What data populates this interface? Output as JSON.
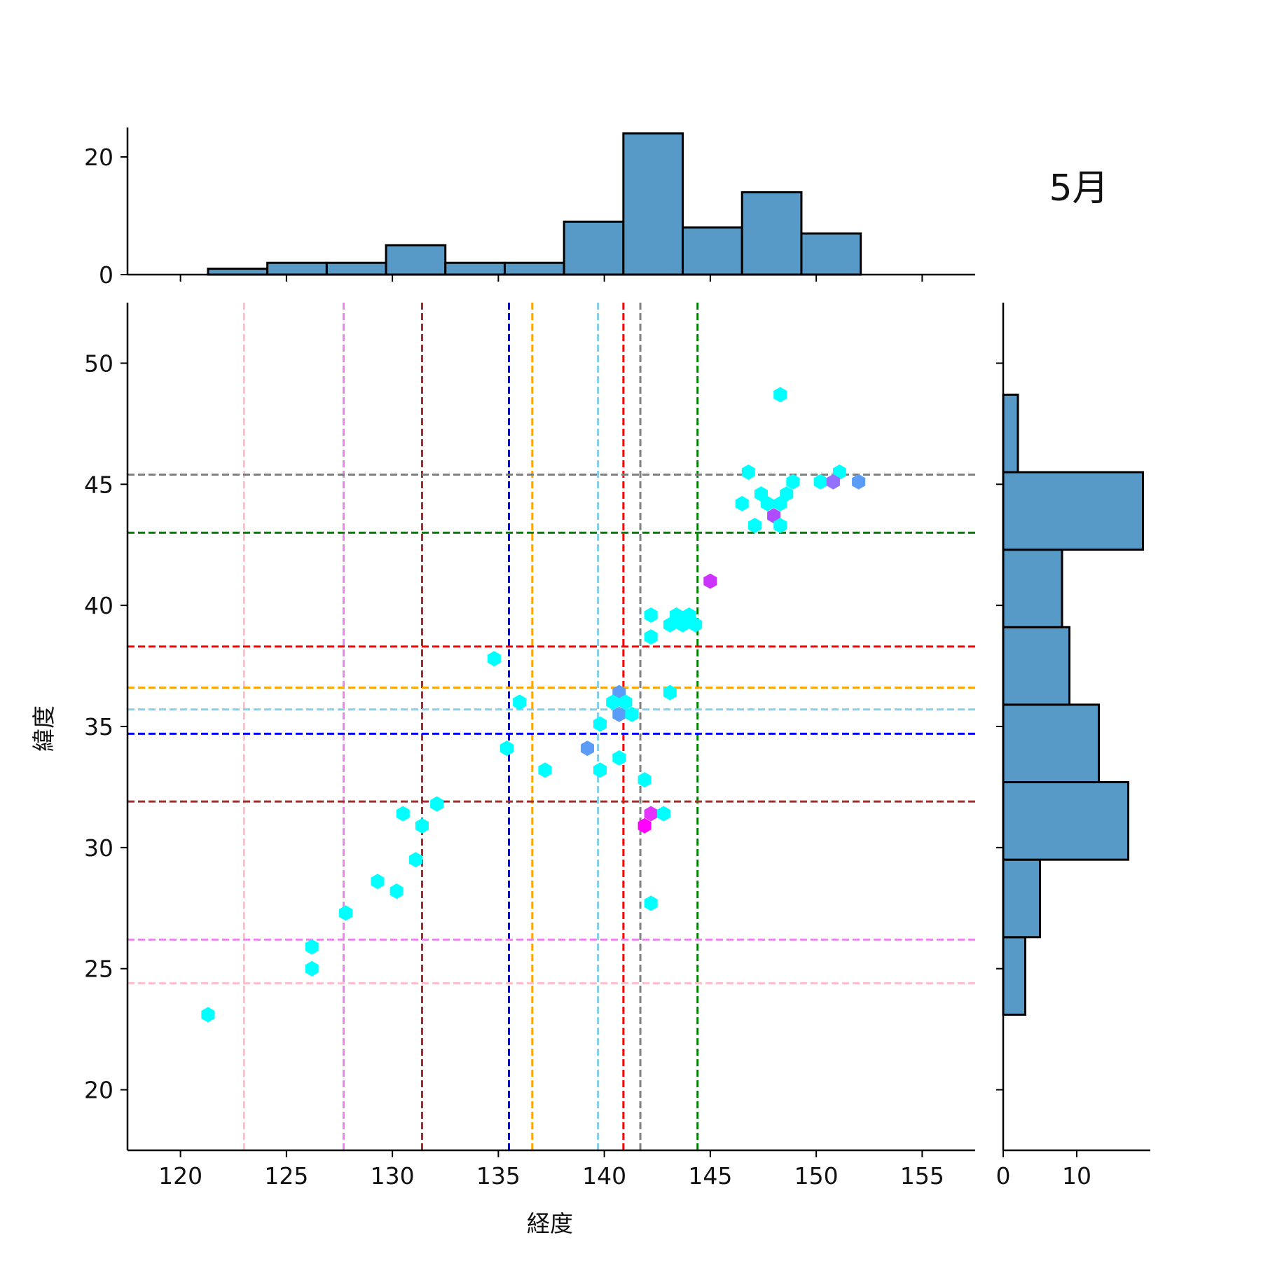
{
  "chart_data": {
    "type": "scatter",
    "title": "5月",
    "xlabel": "経度",
    "ylabel": "緯度",
    "xlim": [
      117.5,
      157.5
    ],
    "ylim": [
      17.5,
      52.5
    ],
    "xticks": [
      120,
      125,
      130,
      135,
      140,
      145,
      150,
      155
    ],
    "yticks": [
      20,
      25,
      30,
      35,
      40,
      45,
      50
    ],
    "top_hist": {
      "yticks": [
        0,
        20
      ],
      "ylim": [
        0,
        25
      ],
      "bins": [
        {
          "x0": 121.3,
          "x1": 124.1,
          "count": 1
        },
        {
          "x0": 124.1,
          "x1": 126.9,
          "count": 2
        },
        {
          "x0": 126.9,
          "x1": 129.7,
          "count": 2
        },
        {
          "x0": 129.7,
          "x1": 132.5,
          "count": 5
        },
        {
          "x0": 132.5,
          "x1": 135.3,
          "count": 2
        },
        {
          "x0": 135.3,
          "x1": 138.1,
          "count": 2
        },
        {
          "x0": 138.1,
          "x1": 140.9,
          "count": 9
        },
        {
          "x0": 140.9,
          "x1": 143.7,
          "count": 24
        },
        {
          "x0": 143.7,
          "x1": 146.5,
          "count": 8
        },
        {
          "x0": 146.5,
          "x1": 149.3,
          "count": 14
        },
        {
          "x0": 149.3,
          "x1": 152.1,
          "count": 7
        }
      ]
    },
    "right_hist": {
      "xticks": [
        0,
        10
      ],
      "xlim": [
        0,
        20
      ],
      "bins": [
        {
          "y0": 23.1,
          "y1": 26.3,
          "count": 3
        },
        {
          "y0": 26.3,
          "y1": 29.5,
          "count": 5
        },
        {
          "y0": 29.5,
          "y1": 32.7,
          "count": 17
        },
        {
          "y0": 32.7,
          "y1": 35.9,
          "count": 13
        },
        {
          "y0": 35.9,
          "y1": 39.1,
          "count": 9
        },
        {
          "y0": 39.1,
          "y1": 42.3,
          "count": 8
        },
        {
          "y0": 42.3,
          "y1": 45.5,
          "count": 19
        },
        {
          "y0": 45.5,
          "y1": 48.7,
          "count": 2
        }
      ]
    },
    "vlines": [
      {
        "x": 123.0,
        "color": "#ffc0cb"
      },
      {
        "x": 127.7,
        "color": "#ee82ee"
      },
      {
        "x": 131.4,
        "color": "#a52a2a"
      },
      {
        "x": 135.5,
        "color": "#0000ff"
      },
      {
        "x": 136.6,
        "color": "#ffa500"
      },
      {
        "x": 139.7,
        "color": "#87ceeb"
      },
      {
        "x": 140.9,
        "color": "#ff0000"
      },
      {
        "x": 141.7,
        "color": "#808080"
      },
      {
        "x": 144.4,
        "color": "#008000"
      }
    ],
    "hlines": [
      {
        "y": 45.4,
        "color": "#808080"
      },
      {
        "y": 43.0,
        "color": "#008000"
      },
      {
        "y": 38.3,
        "color": "#ff0000"
      },
      {
        "y": 36.6,
        "color": "#ffa500"
      },
      {
        "y": 35.7,
        "color": "#87ceeb"
      },
      {
        "y": 34.7,
        "color": "#0000ff"
      },
      {
        "y": 31.9,
        "color": "#a52a2a"
      },
      {
        "y": 26.2,
        "color": "#ee82ee"
      },
      {
        "y": 24.4,
        "color": "#ffc0cb"
      }
    ],
    "hexbins": [
      {
        "x": 148.3,
        "y": 48.7,
        "color": "#00ffff"
      },
      {
        "x": 146.8,
        "y": 45.5,
        "color": "#00ffff"
      },
      {
        "x": 151.1,
        "y": 45.5,
        "color": "#00ffff"
      },
      {
        "x": 148.9,
        "y": 45.1,
        "color": "#00ffff"
      },
      {
        "x": 150.2,
        "y": 45.1,
        "color": "#00ffff"
      },
      {
        "x": 150.8,
        "y": 45.1,
        "color": "#9370ff"
      },
      {
        "x": 152.0,
        "y": 45.1,
        "color": "#5b9cf6"
      },
      {
        "x": 147.4,
        "y": 44.6,
        "color": "#00ffff"
      },
      {
        "x": 148.6,
        "y": 44.6,
        "color": "#00ffff"
      },
      {
        "x": 146.5,
        "y": 44.2,
        "color": "#00ffff"
      },
      {
        "x": 147.7,
        "y": 44.2,
        "color": "#00ffff"
      },
      {
        "x": 148.3,
        "y": 44.2,
        "color": "#00ffff"
      },
      {
        "x": 148.0,
        "y": 43.7,
        "color": "#b04cff"
      },
      {
        "x": 147.1,
        "y": 43.3,
        "color": "#00ffff"
      },
      {
        "x": 148.3,
        "y": 43.3,
        "color": "#00ffff"
      },
      {
        "x": 145.0,
        "y": 41.0,
        "color": "#cc33ff"
      },
      {
        "x": 142.2,
        "y": 39.6,
        "color": "#00ffff"
      },
      {
        "x": 143.4,
        "y": 39.6,
        "color": "#00ffff"
      },
      {
        "x": 144.0,
        "y": 39.6,
        "color": "#00ffff"
      },
      {
        "x": 143.1,
        "y": 39.2,
        "color": "#00ffff"
      },
      {
        "x": 143.7,
        "y": 39.2,
        "color": "#00ffff"
      },
      {
        "x": 144.3,
        "y": 39.2,
        "color": "#00ffff"
      },
      {
        "x": 142.2,
        "y": 38.7,
        "color": "#00ffff"
      },
      {
        "x": 134.8,
        "y": 37.8,
        "color": "#00ffff"
      },
      {
        "x": 140.7,
        "y": 36.4,
        "color": "#5b9cf6"
      },
      {
        "x": 143.1,
        "y": 36.4,
        "color": "#00ffff"
      },
      {
        "x": 136.0,
        "y": 36.0,
        "color": "#00ffff"
      },
      {
        "x": 140.4,
        "y": 36.0,
        "color": "#00ffff"
      },
      {
        "x": 141.0,
        "y": 36.0,
        "color": "#00ffff"
      },
      {
        "x": 140.7,
        "y": 35.5,
        "color": "#5b9cf6"
      },
      {
        "x": 141.3,
        "y": 35.5,
        "color": "#00ffff"
      },
      {
        "x": 139.8,
        "y": 35.1,
        "color": "#00ffff"
      },
      {
        "x": 135.4,
        "y": 34.1,
        "color": "#00ffff"
      },
      {
        "x": 139.2,
        "y": 34.1,
        "color": "#5b9cf6"
      },
      {
        "x": 140.7,
        "y": 33.7,
        "color": "#00ffff"
      },
      {
        "x": 137.2,
        "y": 33.2,
        "color": "#00ffff"
      },
      {
        "x": 139.8,
        "y": 33.2,
        "color": "#00ffff"
      },
      {
        "x": 141.9,
        "y": 32.8,
        "color": "#00ffff"
      },
      {
        "x": 132.1,
        "y": 31.8,
        "color": "#00ffff"
      },
      {
        "x": 130.5,
        "y": 31.4,
        "color": "#00ffff"
      },
      {
        "x": 142.2,
        "y": 31.4,
        "color": "#e533ff"
      },
      {
        "x": 142.8,
        "y": 31.4,
        "color": "#00ffff"
      },
      {
        "x": 131.4,
        "y": 30.9,
        "color": "#00ffff"
      },
      {
        "x": 141.9,
        "y": 30.9,
        "color": "#ff00ff"
      },
      {
        "x": 131.1,
        "y": 29.5,
        "color": "#00ffff"
      },
      {
        "x": 129.3,
        "y": 28.6,
        "color": "#00ffff"
      },
      {
        "x": 130.2,
        "y": 28.2,
        "color": "#00ffff"
      },
      {
        "x": 142.2,
        "y": 27.7,
        "color": "#00ffff"
      },
      {
        "x": 127.8,
        "y": 27.3,
        "color": "#00ffff"
      },
      {
        "x": 126.2,
        "y": 25.9,
        "color": "#00ffff"
      },
      {
        "x": 126.2,
        "y": 25.0,
        "color": "#00ffff"
      },
      {
        "x": 121.3,
        "y": 23.1,
        "color": "#00ffff"
      }
    ],
    "bar_color": "#5799c7",
    "grid": false,
    "legend": "none"
  }
}
